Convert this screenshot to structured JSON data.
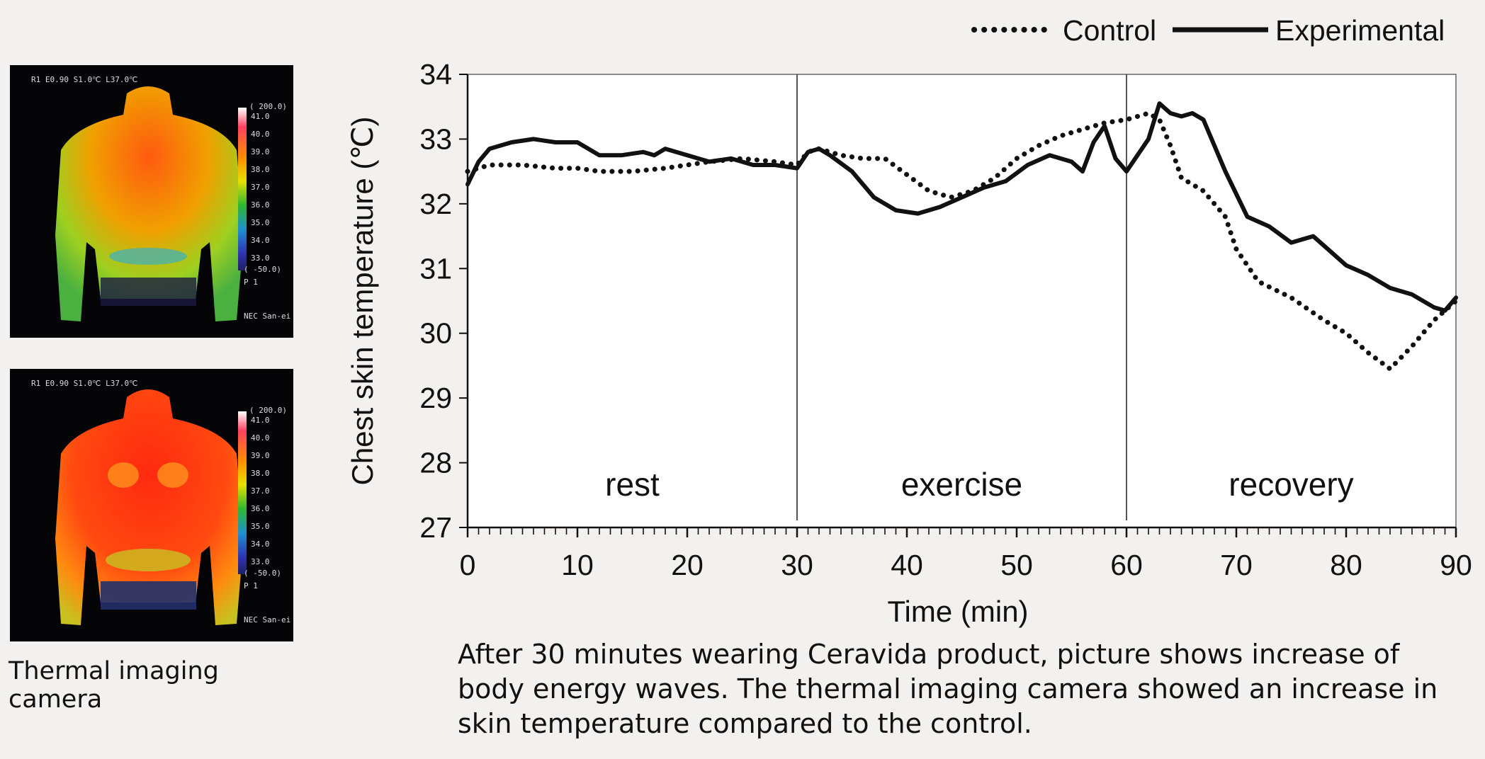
{
  "thermal_images": {
    "caption": "Thermal imaging camera",
    "panels": [
      {
        "header": "R1 E0.90 S1.0℃ L37.0℃",
        "scale_top": "( 200.0)",
        "scale_values": [
          "41.0",
          "40.0",
          "39.0",
          "38.0",
          "37.0",
          "36.0",
          "35.0",
          "34.0",
          "33.0"
        ],
        "scale_bottom": "( -50.0)",
        "p_label": "P 1",
        "footer": "NEC San-ei"
      },
      {
        "header": "R1 E0.90 S1.0℃ L37.0℃",
        "scale_top": "( 200.0)",
        "scale_values": [
          "41.0",
          "40.0",
          "39.0",
          "38.0",
          "37.0",
          "36.0",
          "35.0",
          "34.0",
          "33.0"
        ],
        "scale_bottom": "( -50.0)",
        "p_label": "P 1",
        "footer": "NEC San-ei"
      }
    ]
  },
  "chart_data": {
    "type": "line",
    "xlabel": "Time (min)",
    "ylabel": "Chest skin temperature (℃)",
    "xlim": [
      0,
      90
    ],
    "ylim": [
      27,
      34
    ],
    "xticks": [
      0,
      10,
      20,
      30,
      40,
      50,
      60,
      70,
      80,
      90
    ],
    "yticks": [
      27,
      28,
      29,
      30,
      31,
      32,
      33,
      34
    ],
    "grid": false,
    "legend_position": "top-right",
    "phases": [
      {
        "label": "rest",
        "start": 0,
        "end": 30
      },
      {
        "label": "exercise",
        "start": 30,
        "end": 60
      },
      {
        "label": "recovery",
        "start": 60,
        "end": 90
      }
    ],
    "series": [
      {
        "name": "Control",
        "style": "dotted",
        "color": "#111111",
        "x": [
          0,
          1,
          2,
          3,
          5,
          8,
          10,
          12,
          15,
          18,
          20,
          22,
          25,
          28,
          30,
          31,
          32,
          34,
          36,
          38,
          40,
          42,
          44,
          46,
          48,
          50,
          52,
          54,
          56,
          58,
          60,
          62,
          63,
          64,
          65,
          67,
          69,
          70,
          72,
          75,
          78,
          80,
          82,
          84,
          86,
          88,
          90
        ],
        "values": [
          32.5,
          32.55,
          32.6,
          32.6,
          32.6,
          32.55,
          32.55,
          32.5,
          32.5,
          32.55,
          32.6,
          32.65,
          32.7,
          32.65,
          32.6,
          32.8,
          32.85,
          32.75,
          32.7,
          32.7,
          32.45,
          32.2,
          32.1,
          32.2,
          32.4,
          32.7,
          32.9,
          33.05,
          33.15,
          33.25,
          33.3,
          33.4,
          33.3,
          32.9,
          32.4,
          32.2,
          31.8,
          31.3,
          30.8,
          30.55,
          30.2,
          30.0,
          29.7,
          29.45,
          29.8,
          30.2,
          30.5
        ]
      },
      {
        "name": "Experimental",
        "style": "solid",
        "color": "#111111",
        "x": [
          0,
          1,
          2,
          4,
          6,
          8,
          10,
          12,
          14,
          16,
          17,
          18,
          20,
          22,
          24,
          26,
          28,
          30,
          31,
          32,
          33,
          35,
          37,
          39,
          41,
          43,
          45,
          47,
          49,
          51,
          53,
          55,
          56,
          57,
          58,
          59,
          60,
          62,
          63,
          64,
          65,
          66,
          67,
          69,
          71,
          73,
          75,
          76,
          77,
          78,
          80,
          82,
          84,
          86,
          88,
          89,
          90
        ],
        "values": [
          32.3,
          32.65,
          32.85,
          32.95,
          33.0,
          32.95,
          32.95,
          32.75,
          32.75,
          32.8,
          32.75,
          32.85,
          32.75,
          32.65,
          32.7,
          32.6,
          32.6,
          32.55,
          32.8,
          32.85,
          32.75,
          32.5,
          32.1,
          31.9,
          31.85,
          31.95,
          32.1,
          32.25,
          32.35,
          32.6,
          32.75,
          32.65,
          32.5,
          32.95,
          33.2,
          32.7,
          32.5,
          33.0,
          33.55,
          33.4,
          33.35,
          33.4,
          33.3,
          32.5,
          31.8,
          31.65,
          31.4,
          31.45,
          31.5,
          31.35,
          31.05,
          30.9,
          30.7,
          30.6,
          30.4,
          30.35,
          30.55
        ]
      }
    ]
  },
  "caption": "After 30 minutes wearing Ceravida product, picture shows increase of body energy waves. The thermal imaging camera showed an increase in skin temperature compared to the control."
}
